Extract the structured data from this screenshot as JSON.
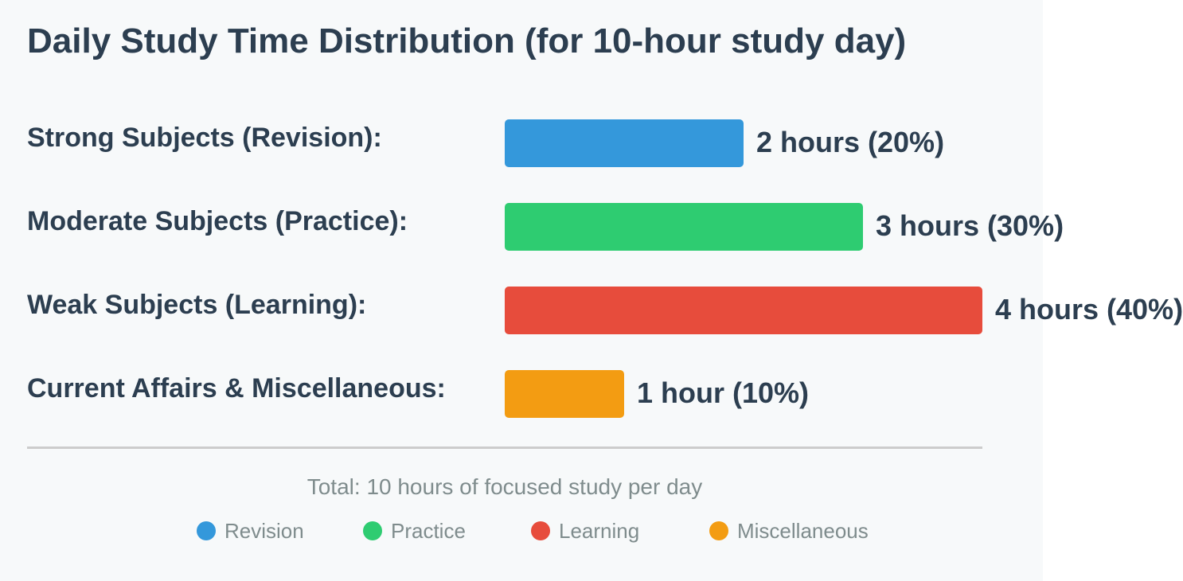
{
  "chart_data": {
    "type": "bar",
    "orientation": "horizontal",
    "title": "Daily Study Time Distribution (for 10-hour study day)",
    "categories": [
      "Strong Subjects (Revision):",
      "Moderate Subjects (Practice):",
      "Weak Subjects (Learning):",
      "Current Affairs & Miscellaneous:"
    ],
    "values": [
      2,
      3,
      4,
      1
    ],
    "value_labels": [
      "2 hours (20%)",
      "3 hours (30%)",
      "4 hours (40%)",
      "1 hour (10%)"
    ],
    "colors": [
      "#3498db",
      "#2ecc71",
      "#e74c3c",
      "#f39c12"
    ],
    "note": "Total: 10 hours of focused study per day",
    "legend": [
      "Revision",
      "Practice",
      "Learning",
      "Miscellaneous"
    ]
  }
}
